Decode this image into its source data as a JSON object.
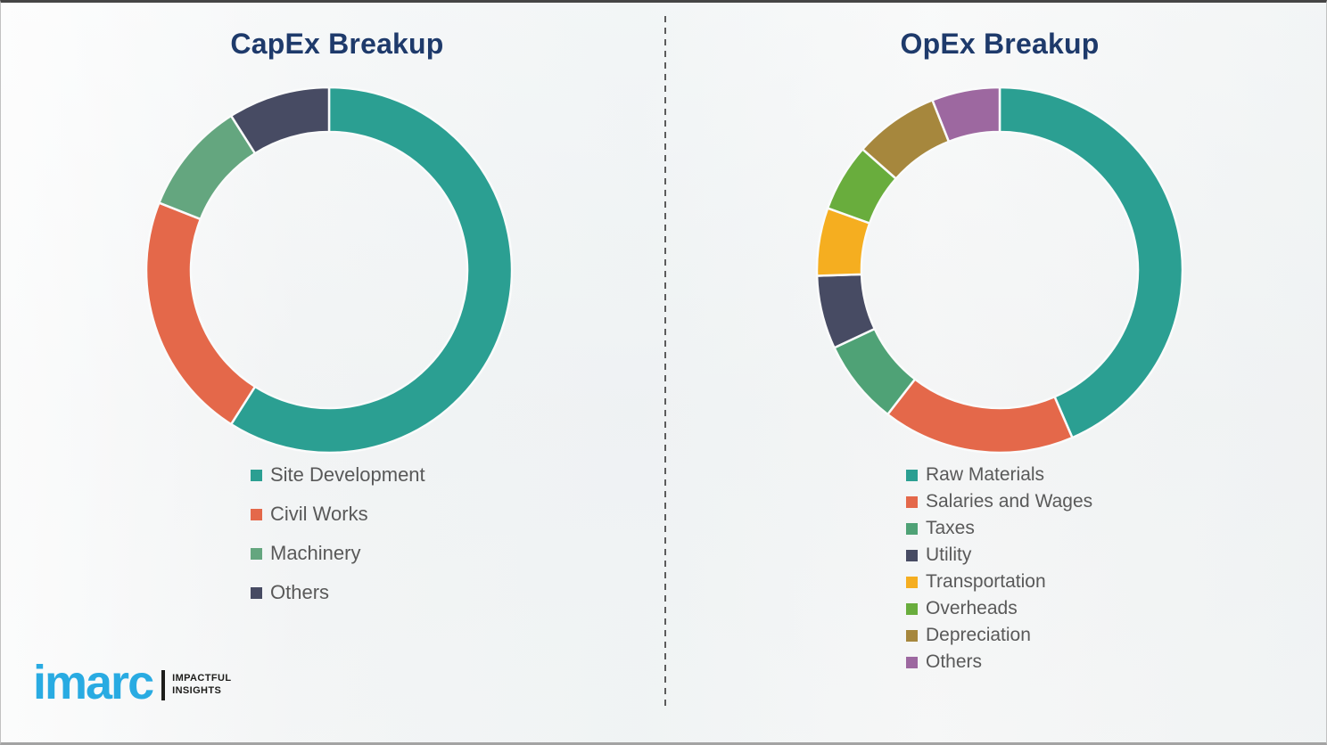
{
  "colors": {
    "background": "#f4f5f5",
    "title": "#1e3a6b",
    "legend_text": "#595959",
    "divider": "#5c5c5c",
    "logo_blue": "#29abe2",
    "logo_dark": "#1d1d1b"
  },
  "chart_data": [
    {
      "type": "pie",
      "variant": "donut",
      "title": "CapEx Breakup",
      "start_angle_deg": 0,
      "direction": "clockwise",
      "legend_position": "below-left",
      "segments": [
        {
          "label": "Site Development",
          "value": 59,
          "color": "#2b9f92"
        },
        {
          "label": "Civil Works",
          "value": 22,
          "color": "#e4684a"
        },
        {
          "label": "Machinery",
          "value": 10,
          "color": "#64a67f"
        },
        {
          "label": "Others",
          "value": 9,
          "color": "#474b63"
        }
      ]
    },
    {
      "type": "pie",
      "variant": "donut",
      "title": "OpEx Breakup",
      "start_angle_deg": 0,
      "direction": "clockwise",
      "legend_position": "below-left",
      "segments": [
        {
          "label": "Raw Materials",
          "value": 43.5,
          "color": "#2b9f92"
        },
        {
          "label": "Salaries and Wages",
          "value": 17,
          "color": "#e4684a"
        },
        {
          "label": "Taxes",
          "value": 7.5,
          "color": "#4fa276"
        },
        {
          "label": "Utility",
          "value": 6.5,
          "color": "#474b63"
        },
        {
          "label": "Transportation",
          "value": 6,
          "color": "#f5ae20"
        },
        {
          "label": "Overheads",
          "value": 6,
          "color": "#69ad3d"
        },
        {
          "label": "Depreciation",
          "value": 7.5,
          "color": "#a6873d"
        },
        {
          "label": "Others",
          "value": 6,
          "color": "#9d68a0"
        }
      ]
    }
  ],
  "logo": {
    "wordmark": "imarc",
    "tagline": [
      "IMPACTFUL",
      "INSIGHTS"
    ]
  }
}
